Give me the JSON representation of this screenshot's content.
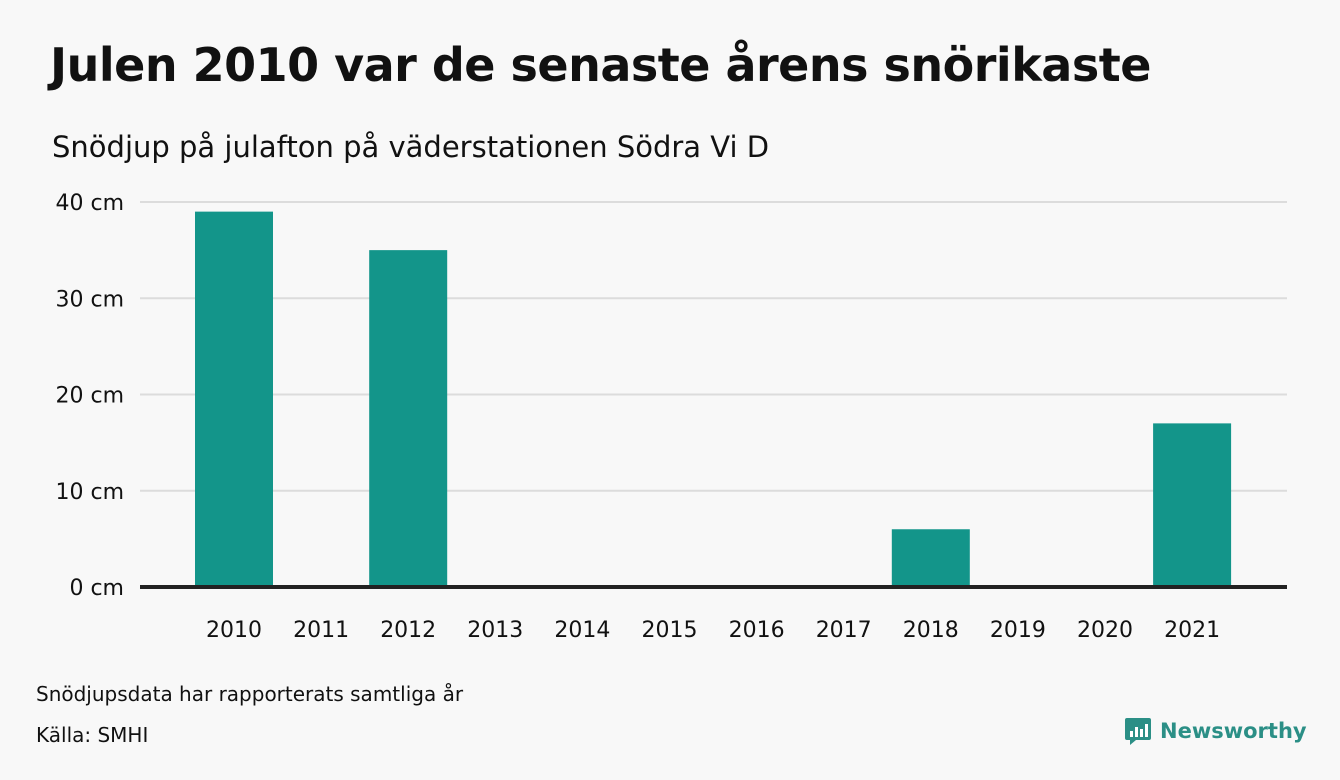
{
  "title": "Julen 2010 var de senaste årens snörikaste",
  "subtitle": "Snödjup på julafton på väderstationen Södra Vi D",
  "footer": {
    "note": "Snödjupsdata har rapporterats samtliga år",
    "source": "Källa: SMHI",
    "brand": "Newsworthy"
  },
  "colors": {
    "bar": "#13958a",
    "grid": "#dcdcdc",
    "baseline": "#222222",
    "brand": "#2b8f86",
    "background": "#f8f8f8"
  },
  "icons": {
    "brand": "newsworthy-logo-icon"
  },
  "chart_data": {
    "type": "bar",
    "categories": [
      "2010",
      "2011",
      "2012",
      "2013",
      "2014",
      "2015",
      "2016",
      "2017",
      "2018",
      "2019",
      "2020",
      "2021"
    ],
    "values": [
      39,
      0,
      35,
      0,
      0,
      0,
      0,
      0,
      6,
      0,
      0,
      17
    ],
    "unit": "cm",
    "yticks": [
      0,
      10,
      20,
      30,
      40
    ],
    "ytick_labels": [
      "0 cm",
      "10 cm",
      "20 cm",
      "30 cm",
      "40 cm"
    ],
    "ylim": [
      0,
      40
    ],
    "grid": true,
    "legend": "none"
  }
}
